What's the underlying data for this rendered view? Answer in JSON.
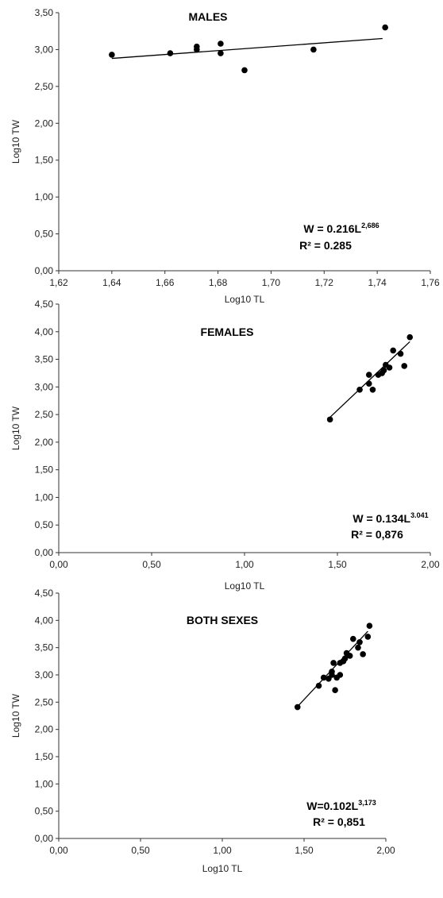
{
  "chart_data": [
    {
      "type": "scatter",
      "title": "MALES",
      "xlabel": "Log10 TL",
      "ylabel": "Log10 TW",
      "xlim": [
        1.62,
        1.76
      ],
      "ylim": [
        0,
        3.5
      ],
      "x_ticks": [
        "1,62",
        "1,64",
        "1,66",
        "1,68",
        "1,70",
        "1,72",
        "1,74",
        "1,76"
      ],
      "y_ticks": [
        "0,00",
        "0,50",
        "1,00",
        "1,50",
        "2,00",
        "2,50",
        "3,00",
        "3,50"
      ],
      "points": [
        {
          "x": 1.64,
          "y": 2.93
        },
        {
          "x": 1.662,
          "y": 2.95
        },
        {
          "x": 1.672,
          "y": 3.0
        },
        {
          "x": 1.672,
          "y": 3.04
        },
        {
          "x": 1.681,
          "y": 2.95
        },
        {
          "x": 1.681,
          "y": 3.08
        },
        {
          "x": 1.69,
          "y": 2.72
        },
        {
          "x": 1.716,
          "y": 3.0
        },
        {
          "x": 1.743,
          "y": 3.3
        }
      ],
      "trendline": {
        "x": [
          1.64,
          1.742
        ],
        "y": [
          2.88,
          3.15
        ]
      },
      "equation": {
        "prefix": "W = 0.216L",
        "exponent": "2,686"
      },
      "r2": "R² = 0.285"
    },
    {
      "type": "scatter",
      "title": "FEMALES",
      "xlabel": "Log10 TL",
      "ylabel": "Log10 TW",
      "xlim": [
        0,
        2
      ],
      "ylim": [
        0,
        4.5
      ],
      "x_ticks": [
        "0,00",
        "0,50",
        "1,00",
        "1,50",
        "2,00"
      ],
      "y_ticks": [
        "0,00",
        "0,50",
        "1,00",
        "1,50",
        "2,00",
        "2,50",
        "3,00",
        "3,50",
        "4,00",
        "4,50"
      ],
      "points": [
        {
          "x": 1.46,
          "y": 2.41
        },
        {
          "x": 1.62,
          "y": 2.95
        },
        {
          "x": 1.67,
          "y": 3.06
        },
        {
          "x": 1.67,
          "y": 3.22
        },
        {
          "x": 1.69,
          "y": 2.95
        },
        {
          "x": 1.72,
          "y": 3.22
        },
        {
          "x": 1.74,
          "y": 3.25
        },
        {
          "x": 1.75,
          "y": 3.3
        },
        {
          "x": 1.76,
          "y": 3.4
        },
        {
          "x": 1.78,
          "y": 3.35
        },
        {
          "x": 1.8,
          "y": 3.66
        },
        {
          "x": 1.84,
          "y": 3.6
        },
        {
          "x": 1.86,
          "y": 3.38
        },
        {
          "x": 1.89,
          "y": 3.9
        }
      ],
      "trendline": {
        "x": [
          1.46,
          1.89
        ],
        "y": [
          2.45,
          3.82
        ]
      },
      "equation": {
        "prefix": "W = 0.134L",
        "exponent": "3.041"
      },
      "r2": "R² = 0,876"
    },
    {
      "type": "scatter",
      "title": "BOTH SEXES",
      "xlabel": "Log10 TL",
      "ylabel": "Log10 TW",
      "xlim": [
        0,
        2
      ],
      "ylim": [
        0,
        4.5
      ],
      "x_ticks": [
        "0,00",
        "0,50",
        "1,00",
        "1,50",
        "2,00"
      ],
      "y_ticks": [
        "0,00",
        "0,50",
        "1,00",
        "1,50",
        "2,00",
        "2,50",
        "3,00",
        "3,50",
        "4,00",
        "4,50"
      ],
      "points": [
        {
          "x": 1.46,
          "y": 2.41
        },
        {
          "x": 1.59,
          "y": 2.8
        },
        {
          "x": 1.62,
          "y": 2.95
        },
        {
          "x": 1.65,
          "y": 2.93
        },
        {
          "x": 1.67,
          "y": 3.0
        },
        {
          "x": 1.67,
          "y": 3.06
        },
        {
          "x": 1.68,
          "y": 3.22
        },
        {
          "x": 1.69,
          "y": 2.72
        },
        {
          "x": 1.7,
          "y": 2.95
        },
        {
          "x": 1.72,
          "y": 3.0
        },
        {
          "x": 1.72,
          "y": 3.22
        },
        {
          "x": 1.74,
          "y": 3.25
        },
        {
          "x": 1.75,
          "y": 3.3
        },
        {
          "x": 1.76,
          "y": 3.4
        },
        {
          "x": 1.78,
          "y": 3.35
        },
        {
          "x": 1.8,
          "y": 3.66
        },
        {
          "x": 1.83,
          "y": 3.5
        },
        {
          "x": 1.84,
          "y": 3.6
        },
        {
          "x": 1.86,
          "y": 3.38
        },
        {
          "x": 1.89,
          "y": 3.7
        },
        {
          "x": 1.9,
          "y": 3.9
        }
      ],
      "trendline": {
        "x": [
          1.46,
          1.89
        ],
        "y": [
          2.42,
          3.8
        ]
      },
      "equation": {
        "prefix": "W=0.102L",
        "exponent": "3,173"
      },
      "r2": "R² = 0,851"
    }
  ]
}
